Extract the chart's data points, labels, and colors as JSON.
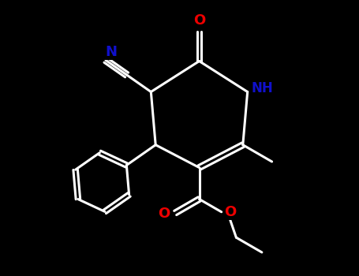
{
  "background_color": "#000000",
  "bond_color": "#ffffff",
  "atom_colors": {
    "N": "#1010cc",
    "O": "#ee0000",
    "C": "#ffffff"
  },
  "bond_width": 2.2,
  "figsize": [
    4.55,
    3.5
  ],
  "dpi": 100,
  "xlim": [
    0,
    9
  ],
  "ylim": [
    0,
    7
  ]
}
